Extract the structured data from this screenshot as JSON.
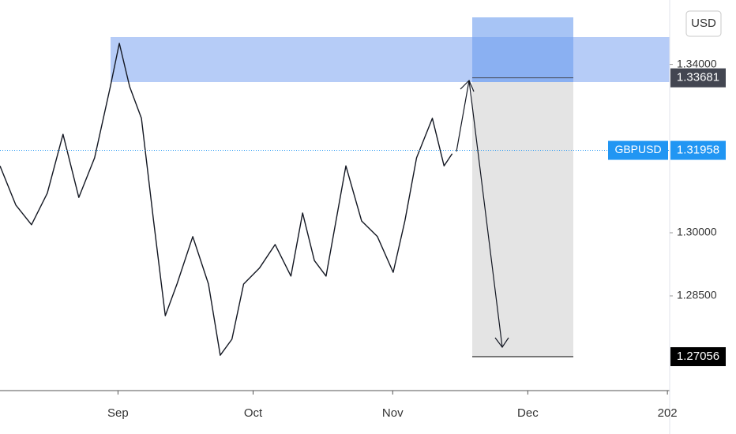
{
  "chart_data": {
    "type": "line",
    "series": [
      {
        "name": "GBPUSD",
        "color": "#131722",
        "values": [
          1.3159,
          1.3066,
          1.3019,
          1.3094,
          1.3234,
          1.3084,
          1.3178,
          1.3347,
          1.345,
          1.3347,
          1.3272,
          1.3028,
          1.2803,
          1.2878,
          1.2991,
          1.2878,
          1.2709,
          1.2747,
          1.2878,
          1.2916,
          1.2972,
          1.2897,
          1.3047,
          1.2934,
          1.2897,
          1.3159,
          1.3028,
          1.2991,
          1.2906,
          1.3028,
          1.3178,
          1.3272,
          1.3159,
          1.3188
        ]
      }
    ],
    "x": [
      4.8,
      8.3,
      11.8,
      15.3,
      18.8,
      22.3,
      25.8,
      29.3,
      31.3,
      33.6,
      36.2,
      38.9,
      41.5,
      44.1,
      47.6,
      51.1,
      53.7,
      56.3,
      58.9,
      62.4,
      65.9,
      69.4,
      72.0,
      74.6,
      77.2,
      81.6,
      85.1,
      88.6,
      92.1,
      94.7,
      97.3,
      100.8,
      103.4,
      105.2
    ],
    "xlim": [
      4.8,
      153.5
    ],
    "xticks": [
      {
        "value": 31,
        "label": "Sep"
      },
      {
        "value": 61,
        "label": "Oct"
      },
      {
        "value": 92,
        "label": "Nov"
      },
      {
        "value": 122,
        "label": "Dec"
      },
      {
        "value": 153,
        "label": "202"
      }
    ],
    "ylim": [
      1.2625,
      1.3553
    ],
    "yticks": [
      {
        "value": 1.285,
        "label": "1.28500"
      },
      {
        "value": 1.3,
        "label": "1.30000"
      },
      {
        "value": 1.34,
        "label": "1.34000"
      }
    ],
    "price_labels": [
      {
        "value": 1.33681,
        "label": "1.33681",
        "color": "#434651"
      },
      {
        "value": 1.31958,
        "label": "1.31958",
        "color": "#2196f3"
      },
      {
        "value": 1.27056,
        "label": "1.27056",
        "color": "#000000"
      }
    ],
    "symbol": "GBPUSD",
    "currency": "USD"
  }
}
